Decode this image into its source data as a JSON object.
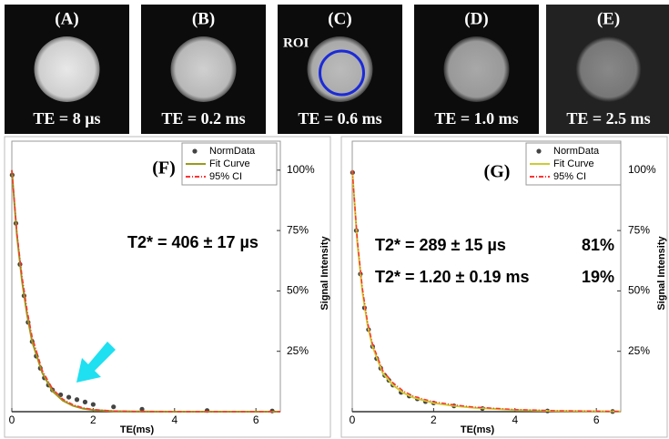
{
  "images": [
    {
      "label": "(A)",
      "caption": "TE = 8 µs"
    },
    {
      "label": "(B)",
      "caption": "TE = 0.2 ms"
    },
    {
      "label": "(C)",
      "caption": "TE = 0.6 ms"
    },
    {
      "label": "(D)",
      "caption": "TE = 1.0 ms"
    },
    {
      "label": "(E)",
      "caption": "TE = 2.5 ms"
    }
  ],
  "roi_label": "ROI",
  "chart_data": [
    {
      "type": "scatter-line",
      "panel_label": "(F)",
      "annotations": [
        "T2* = 406 ± 17 µs"
      ],
      "xlabel": "TE(ms)",
      "ylabel": "Signal Intensity",
      "xlim": [
        0,
        6.6
      ],
      "xticks": [
        0,
        2,
        4,
        6
      ],
      "ylim": [
        0,
        112
      ],
      "yticks": [
        {
          "value": 25,
          "label": "25%"
        },
        {
          "value": 50,
          "label": "50%"
        },
        {
          "value": 75,
          "label": "75%"
        },
        {
          "value": 100,
          "label": "100%"
        }
      ],
      "series": [
        {
          "name": "NormData",
          "color": "#444444",
          "kind": "points",
          "x": [
            0.008,
            0.1,
            0.2,
            0.3,
            0.4,
            0.5,
            0.6,
            0.7,
            0.8,
            0.9,
            1.0,
            1.2,
            1.4,
            1.6,
            1.8,
            2.0,
            2.5,
            3.2,
            4.8,
            6.4
          ],
          "values": [
            98,
            78,
            61,
            48,
            37,
            29,
            23,
            18,
            14,
            11,
            9,
            7,
            6,
            5,
            4,
            3,
            2,
            1,
            0.5,
            0.3
          ]
        },
        {
          "name": "Fit Curve",
          "color": "#9a9a1a",
          "kind": "line",
          "x": [
            0,
            0.125,
            0.25,
            0.375,
            0.5,
            0.75,
            1,
            1.25,
            1.5,
            1.75,
            2,
            2.5,
            3,
            4,
            6.6
          ],
          "values": [
            100,
            73,
            54,
            40,
            29,
            16,
            8.5,
            4.6,
            2.5,
            1.3,
            0.7,
            0.2,
            0.1,
            0,
            0
          ]
        },
        {
          "name": "95% CI",
          "color": "#ff3333",
          "kind": "dash",
          "x": [
            0,
            0.125,
            0.25,
            0.375,
            0.5,
            0.75,
            1,
            1.25,
            1.5,
            1.75,
            2,
            2.5,
            3,
            4,
            6.6
          ],
          "values": [
            100,
            74,
            56,
            42,
            31,
            17,
            9.5,
            5.2,
            2.9,
            1.6,
            0.9,
            0.3,
            0.1,
            0,
            0
          ]
        }
      ]
    },
    {
      "type": "scatter-line",
      "panel_label": "(G)",
      "annotations": [
        "T2* = 289 ± 15 µs",
        "81%",
        "T2* = 1.20 ± 0.19 ms",
        "19%"
      ],
      "xlabel": "TE(ms)",
      "ylabel": "Signal Intensity",
      "xlim": [
        0,
        6.6
      ],
      "xticks": [
        0,
        2,
        4,
        6
      ],
      "ylim": [
        0,
        112
      ],
      "yticks": [
        {
          "value": 25,
          "label": "25%"
        },
        {
          "value": 50,
          "label": "50%"
        },
        {
          "value": 75,
          "label": "75%"
        },
        {
          "value": 100,
          "label": "100%"
        }
      ],
      "series": [
        {
          "name": "NormData",
          "color": "#444444",
          "kind": "points",
          "x": [
            0.008,
            0.1,
            0.2,
            0.3,
            0.4,
            0.5,
            0.6,
            0.7,
            0.8,
            0.9,
            1.0,
            1.2,
            1.4,
            1.6,
            1.8,
            2.0,
            2.5,
            3.2,
            4.8,
            6.4
          ],
          "values": [
            99,
            75,
            57,
            43,
            34,
            27,
            22,
            18,
            15,
            13,
            11,
            8,
            6.5,
            5.3,
            4.2,
            3.6,
            2.4,
            1.3,
            0.3,
            0.1
          ]
        },
        {
          "name": "Fit Curve",
          "color": "#cccc33",
          "kind": "line",
          "x": [
            0,
            0.125,
            0.25,
            0.375,
            0.5,
            0.75,
            1,
            1.25,
            1.5,
            1.75,
            2,
            2.5,
            3,
            4,
            5,
            6.6
          ],
          "values": [
            100,
            70,
            49.5,
            36,
            27,
            16,
            11,
            7.8,
            5.9,
            4.7,
            3.6,
            2.4,
            1.6,
            0.7,
            0.3,
            0.1
          ]
        },
        {
          "name": "95% CI",
          "color": "#ff3333",
          "kind": "dash",
          "x": [
            0,
            0.125,
            0.25,
            0.375,
            0.5,
            0.75,
            1,
            1.25,
            1.5,
            1.75,
            2,
            2.5,
            3,
            4,
            5,
            6.6
          ],
          "values": [
            100,
            71,
            51,
            37,
            28,
            17,
            12,
            8.6,
            6.5,
            5.2,
            4.1,
            2.8,
            1.9,
            0.9,
            0.4,
            0.1
          ]
        }
      ]
    }
  ]
}
